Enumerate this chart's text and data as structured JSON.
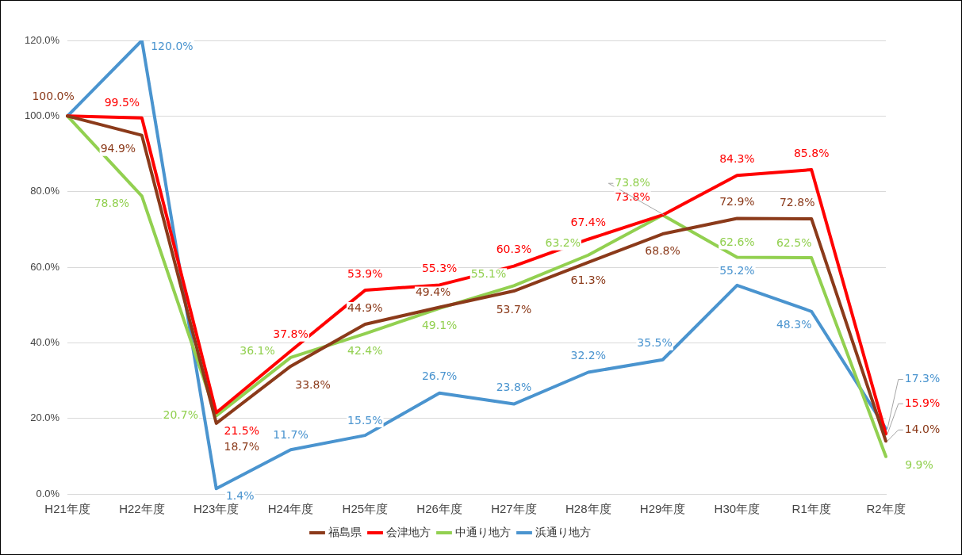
{
  "chart_data": {
    "type": "line",
    "categories": [
      "H21年度",
      "H22年度",
      "H23年度",
      "H24年度",
      "H25年度",
      "H26年度",
      "H27年度",
      "H28年度",
      "H29年度",
      "H30年度",
      "R1年度",
      "R2年度"
    ],
    "series": [
      {
        "name": "福島県",
        "color": "#8b3a1a",
        "values": [
          100.0,
          94.9,
          18.7,
          33.8,
          44.9,
          49.4,
          53.7,
          61.3,
          68.8,
          72.9,
          72.8,
          14.0
        ],
        "value_labels": [
          "100.0%",
          "94.9%",
          "18.7%",
          "33.8%",
          "44.9%",
          "49.4%",
          "53.7%",
          "61.3%",
          "68.8%",
          "72.9%",
          "72.8%",
          "14.0%"
        ]
      },
      {
        "name": "会津地方",
        "color": "#ff0000",
        "values": [
          100.0,
          99.5,
          21.5,
          37.8,
          53.9,
          55.3,
          60.3,
          67.4,
          73.8,
          84.3,
          85.8,
          15.9
        ],
        "value_labels": [
          null,
          "99.5%",
          "21.5%",
          "37.8%",
          "53.9%",
          "55.3%",
          "60.3%",
          "67.4%",
          "73.8%",
          "84.3%",
          "85.8%",
          "15.9%"
        ]
      },
      {
        "name": "中通り地方",
        "color": "#92d050",
        "values": [
          100.0,
          78.8,
          20.7,
          36.1,
          42.4,
          49.1,
          55.1,
          63.2,
          73.8,
          62.6,
          62.5,
          9.9
        ],
        "value_labels": [
          null,
          "78.8%",
          "20.7%",
          "36.1%",
          "42.4%",
          "49.1%",
          "55.1%",
          "63.2%",
          "73.8%",
          "62.6%",
          "62.5%",
          "9.9%"
        ]
      },
      {
        "name": "浜通り地方",
        "color": "#4a94cf",
        "values": [
          100.0,
          120.0,
          1.4,
          11.7,
          15.5,
          26.7,
          23.8,
          32.2,
          35.5,
          55.2,
          48.3,
          17.3
        ],
        "value_labels": [
          null,
          "120.0%",
          "1.4%",
          "11.7%",
          "15.5%",
          "26.7%",
          "23.8%",
          "32.2%",
          "35.5%",
          "55.2%",
          "48.3%",
          "17.3%"
        ]
      }
    ],
    "ylim": [
      0,
      120
    ],
    "yticks": [
      {
        "value": 0,
        "label": "0.0%"
      },
      {
        "value": 20,
        "label": "20.0%"
      },
      {
        "value": 40,
        "label": "40.0%"
      },
      {
        "value": 60,
        "label": "60.0%"
      },
      {
        "value": 80,
        "label": "80.0%"
      },
      {
        "value": 100,
        "label": "100.0%"
      },
      {
        "value": 120,
        "label": "120.0%"
      }
    ],
    "grid": "y",
    "legend": "bottom",
    "marker": "none",
    "line_style": "solid"
  }
}
